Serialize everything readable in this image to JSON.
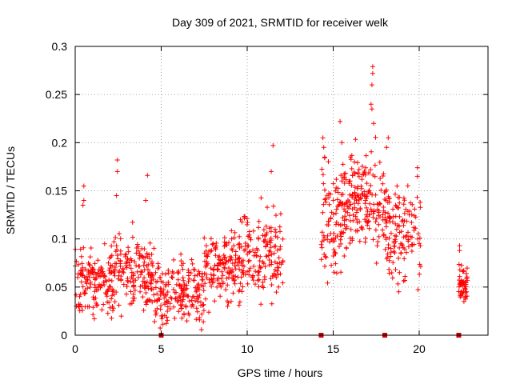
{
  "chart_data": {
    "type": "scatter",
    "title": "Day 309 of 2021, SRMTID for receiver welk",
    "xlabel": "GPS time / hours",
    "ylabel": "SRMTID / TECUs",
    "xlim": [
      0,
      24
    ],
    "ylim": [
      0,
      0.3
    ],
    "xticks": [
      0,
      5,
      10,
      15,
      20
    ],
    "xtick_labels": [
      "0",
      "5",
      "10",
      "15",
      "20"
    ],
    "yticks": [
      0,
      0.05,
      0.1,
      0.15,
      0.2,
      0.25,
      0.3
    ],
    "ytick_labels": [
      "0",
      "0.05",
      "0.1",
      "0.15",
      "0.2",
      "0.25",
      "0.3"
    ],
    "grid": true,
    "series_color": "#ff0000",
    "gap_marker_color": "#cc0000",
    "gap_markers_x": [
      5.0,
      14.3,
      18.0,
      22.3
    ],
    "segments": [
      {
        "start": 0.0,
        "end": 2.3,
        "center": 0.055,
        "spread": 0.022,
        "count": 160
      },
      {
        "start": 2.3,
        "end": 4.6,
        "center": 0.065,
        "spread": 0.022,
        "count": 160
      },
      {
        "start": 4.6,
        "end": 7.5,
        "center": 0.045,
        "spread": 0.02,
        "count": 190
      },
      {
        "start": 7.5,
        "end": 9.5,
        "center": 0.07,
        "spread": 0.022,
        "count": 140
      },
      {
        "start": 9.5,
        "end": 12.1,
        "center": 0.082,
        "spread": 0.028,
        "count": 170
      },
      {
        "start": 14.3,
        "end": 16.0,
        "center": 0.125,
        "spread": 0.035,
        "count": 130
      },
      {
        "start": 16.0,
        "end": 18.0,
        "center": 0.14,
        "spread": 0.035,
        "count": 150
      },
      {
        "start": 18.0,
        "end": 20.1,
        "center": 0.105,
        "spread": 0.03,
        "count": 140
      },
      {
        "start": 22.3,
        "end": 22.8,
        "center": 0.055,
        "spread": 0.012,
        "count": 50
      }
    ],
    "highlights": [
      {
        "x": 0.5,
        "y": 0.155
      },
      {
        "x": 0.5,
        "y": 0.14
      },
      {
        "x": 0.45,
        "y": 0.135
      },
      {
        "x": 2.45,
        "y": 0.182
      },
      {
        "x": 2.45,
        "y": 0.17
      },
      {
        "x": 2.4,
        "y": 0.145
      },
      {
        "x": 4.2,
        "y": 0.166
      },
      {
        "x": 4.1,
        "y": 0.14
      },
      {
        "x": 11.5,
        "y": 0.197
      },
      {
        "x": 11.4,
        "y": 0.17
      },
      {
        "x": 14.4,
        "y": 0.205
      },
      {
        "x": 14.45,
        "y": 0.195
      },
      {
        "x": 14.5,
        "y": 0.185
      },
      {
        "x": 15.4,
        "y": 0.222
      },
      {
        "x": 15.5,
        "y": 0.2
      },
      {
        "x": 17.3,
        "y": 0.279
      },
      {
        "x": 17.3,
        "y": 0.272
      },
      {
        "x": 17.25,
        "y": 0.26
      },
      {
        "x": 17.2,
        "y": 0.24
      },
      {
        "x": 17.25,
        "y": 0.235
      },
      {
        "x": 17.35,
        "y": 0.22
      },
      {
        "x": 18.2,
        "y": 0.205
      },
      {
        "x": 18.1,
        "y": 0.195
      },
      {
        "x": 19.9,
        "y": 0.174
      },
      {
        "x": 19.9,
        "y": 0.165
      },
      {
        "x": 22.35,
        "y": 0.093
      },
      {
        "x": 22.35,
        "y": 0.088
      },
      {
        "x": 22.6,
        "y": 0.035
      },
      {
        "x": 22.7,
        "y": 0.04
      }
    ]
  }
}
